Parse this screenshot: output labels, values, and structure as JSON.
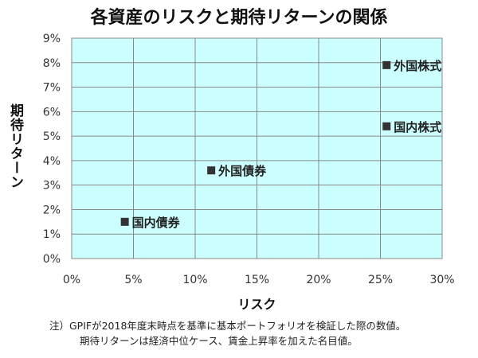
{
  "chart_data": {
    "type": "scatter",
    "title": "各資産のリスクと期待リターンの関係",
    "xlabel": "リスク",
    "ylabel": "期待リターン",
    "xlim": [
      0,
      30
    ],
    "ylim": [
      0,
      9
    ],
    "x_ticks": [
      "0%",
      "5%",
      "10%",
      "15%",
      "20%",
      "25%",
      "30%"
    ],
    "y_ticks": [
      "0%",
      "1%",
      "2%",
      "3%",
      "4%",
      "5%",
      "6%",
      "7%",
      "8%",
      "9%"
    ],
    "grid": true,
    "points": [
      {
        "name": "国内債券",
        "x": 4.3,
        "y": 1.5
      },
      {
        "name": "外国債券",
        "x": 11.3,
        "y": 3.6
      },
      {
        "name": "国内株式",
        "x": 25.5,
        "y": 5.4
      },
      {
        "name": "外国株式",
        "x": 25.5,
        "y": 7.9
      }
    ],
    "colors": {
      "plot_bg": "#ccffff",
      "grid": "#888888",
      "marker": "#333333"
    }
  },
  "note": {
    "line1": "注）GPIFが2018年度末時点を基準に基本ポートフォリオを検証した際の数値。",
    "line2": "期待リターンは経済中位ケース、賃金上昇率を加えた名目値。"
  }
}
